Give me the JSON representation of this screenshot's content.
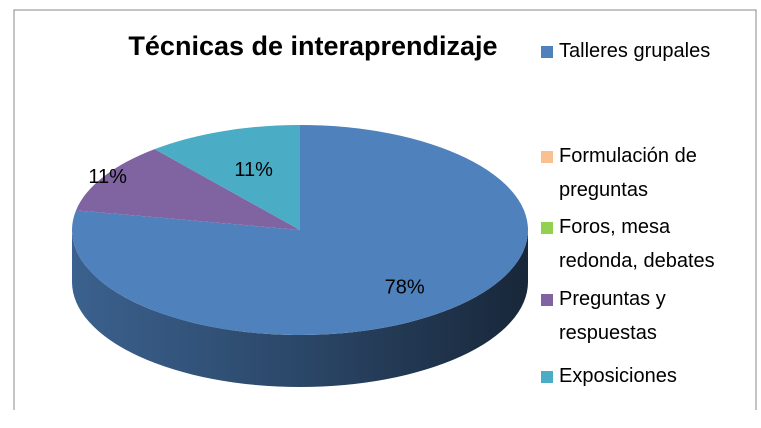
{
  "chart_data": {
    "type": "pie3d",
    "title": "Técnicas de interaprendizaje",
    "categories": [
      "Talleres grupales",
      "Formulación de preguntas",
      "Foros, mesa redonda, debates",
      "Preguntas y respuestas",
      "Exposiciones"
    ],
    "values": [
      78,
      0,
      0,
      11,
      11
    ],
    "value_labels": [
      "78%",
      null,
      null,
      "11%",
      "11%"
    ],
    "colors": [
      "#4f81bd",
      "#fac090",
      "#92d050",
      "#8064a2",
      "#4bacc6"
    ],
    "legend": "right"
  }
}
